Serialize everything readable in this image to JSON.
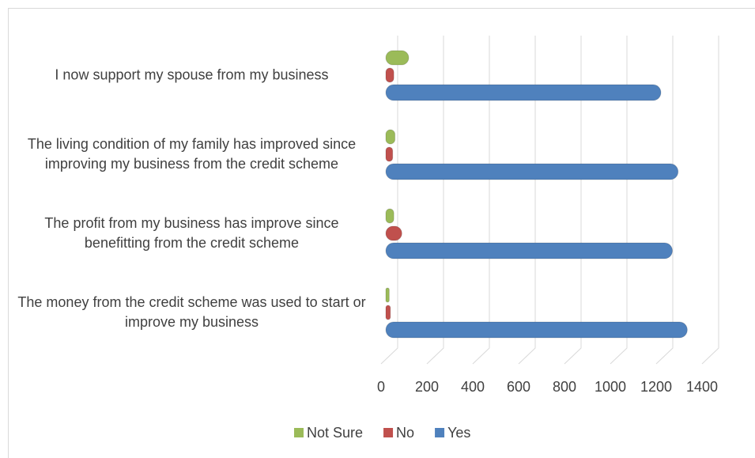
{
  "chart_data": {
    "type": "bar",
    "orientation": "horizontal",
    "categories": [
      "The money from the credit scheme was used to start or improve my business",
      "The profit from my business has improve since benefitting from the credit scheme",
      "The living condition of my family has improved since improving my business from the credit scheme",
      "I now support my spouse from my business"
    ],
    "series": [
      {
        "name": "Yes",
        "color": "#4f81bd",
        "values": [
          1315,
          1250,
          1275,
          1200
        ]
      },
      {
        "name": "No",
        "color": "#c0504d",
        "values": [
          20,
          70,
          30,
          35
        ]
      },
      {
        "name": "Not Sure",
        "color": "#9bbb59",
        "values": [
          15,
          35,
          40,
          100
        ]
      }
    ],
    "xlim": [
      0,
      1400
    ],
    "xticks": [
      0,
      200,
      400,
      600,
      800,
      1000,
      1200,
      1400
    ],
    "grid": true,
    "legend": "bottom"
  }
}
